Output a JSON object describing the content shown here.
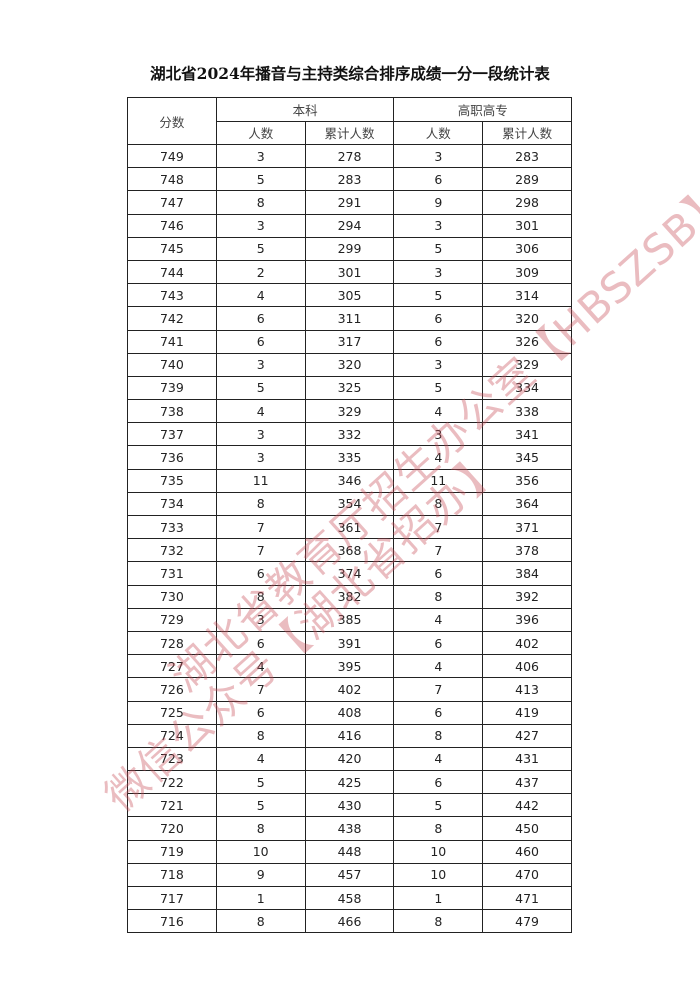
{
  "title": "湖北省2024年播音与主持类综合排序成绩一分一段统计表",
  "headers": {
    "score": "分数",
    "undergrad": "本科",
    "vocational": "高职高专",
    "count": "人数",
    "cumulative": "累计人数"
  },
  "rows": [
    [
      "749",
      "3",
      "278",
      "3",
      "283"
    ],
    [
      "748",
      "5",
      "283",
      "6",
      "289"
    ],
    [
      "747",
      "8",
      "291",
      "9",
      "298"
    ],
    [
      "746",
      "3",
      "294",
      "3",
      "301"
    ],
    [
      "745",
      "5",
      "299",
      "5",
      "306"
    ],
    [
      "744",
      "2",
      "301",
      "3",
      "309"
    ],
    [
      "743",
      "4",
      "305",
      "5",
      "314"
    ],
    [
      "742",
      "6",
      "311",
      "6",
      "320"
    ],
    [
      "741",
      "6",
      "317",
      "6",
      "326"
    ],
    [
      "740",
      "3",
      "320",
      "3",
      "329"
    ],
    [
      "739",
      "5",
      "325",
      "5",
      "334"
    ],
    [
      "738",
      "4",
      "329",
      "4",
      "338"
    ],
    [
      "737",
      "3",
      "332",
      "3",
      "341"
    ],
    [
      "736",
      "3",
      "335",
      "4",
      "345"
    ],
    [
      "735",
      "11",
      "346",
      "11",
      "356"
    ],
    [
      "734",
      "8",
      "354",
      "8",
      "364"
    ],
    [
      "733",
      "7",
      "361",
      "7",
      "371"
    ],
    [
      "732",
      "7",
      "368",
      "7",
      "378"
    ],
    [
      "731",
      "6",
      "374",
      "6",
      "384"
    ],
    [
      "730",
      "8",
      "382",
      "8",
      "392"
    ],
    [
      "729",
      "3",
      "385",
      "4",
      "396"
    ],
    [
      "728",
      "6",
      "391",
      "6",
      "402"
    ],
    [
      "727",
      "4",
      "395",
      "4",
      "406"
    ],
    [
      "726",
      "7",
      "402",
      "7",
      "413"
    ],
    [
      "725",
      "6",
      "408",
      "6",
      "419"
    ],
    [
      "724",
      "8",
      "416",
      "8",
      "427"
    ],
    [
      "723",
      "4",
      "420",
      "4",
      "431"
    ],
    [
      "722",
      "5",
      "425",
      "6",
      "437"
    ],
    [
      "721",
      "5",
      "430",
      "5",
      "442"
    ],
    [
      "720",
      "8",
      "438",
      "8",
      "450"
    ],
    [
      "719",
      "10",
      "448",
      "10",
      "460"
    ],
    [
      "718",
      "9",
      "457",
      "10",
      "470"
    ],
    [
      "717",
      "1",
      "458",
      "1",
      "471"
    ],
    [
      "716",
      "8",
      "466",
      "8",
      "479"
    ]
  ],
  "watermark": [
    "湖北省教育厅招生办公室【HBSZSB】",
    "微信公众号【湖北省招办】"
  ],
  "colors": {
    "watermark": "#c8505a"
  }
}
